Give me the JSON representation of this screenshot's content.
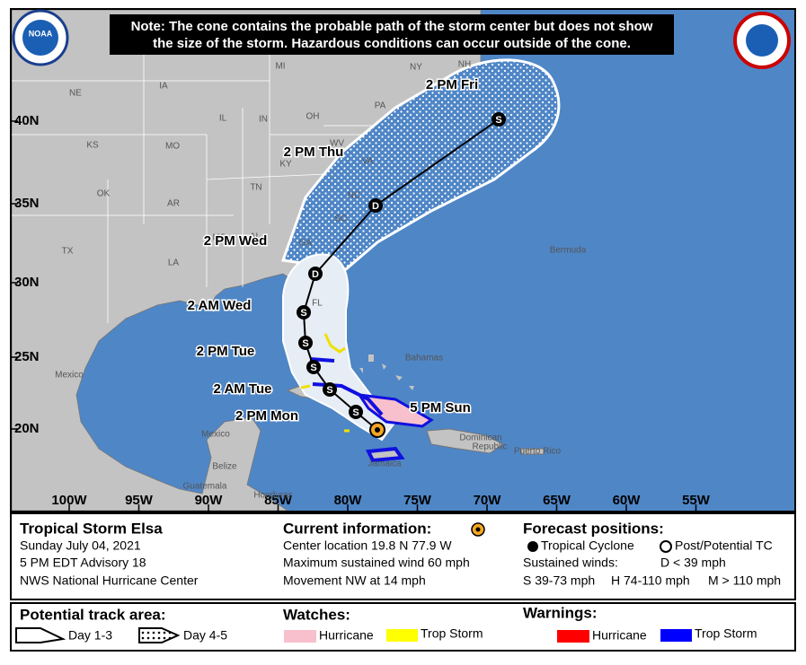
{
  "note": [
    "Note: The cone contains the probable path of the storm center but does not show",
    "the size of the storm. Hazardous conditions can occur outside of the cone."
  ],
  "logo": "NOAA",
  "latitude_labels": [
    "40N",
    "35N",
    "30N",
    "25N",
    "20N"
  ],
  "longitude_labels": [
    "100W",
    "95W",
    "90W",
    "85W",
    "80W",
    "75W",
    "70W",
    "65W",
    "60W",
    "55W"
  ],
  "place_labels": [
    "NE",
    "IA",
    "MI",
    "NY",
    "NH",
    "IL",
    "IN",
    "OH",
    "PA",
    "WV",
    "KS",
    "MO",
    "KY",
    "VA",
    "TN",
    "NC",
    "OK",
    "AR",
    "SC",
    "MS",
    "AL",
    "GA",
    "TX",
    "LA",
    "FL",
    "Bermuda",
    "Bahamas",
    "Mexico",
    "Mexico",
    "Belize",
    "Guatemala",
    "Honduras",
    "Jamaica",
    "Dominican",
    "Republic",
    "Puerto Rico"
  ],
  "forecast_times": [
    "2 PM Fri",
    "2 PM Thu",
    "2 PM Wed",
    "2 AM Wed",
    "2 PM Tue",
    "2 AM Tue",
    "2 PM Mon",
    "5 PM Sun"
  ],
  "track_markers": [
    "S",
    "D",
    "D",
    "S",
    "S",
    "S",
    "S",
    "S"
  ],
  "storm": {
    "name": "Tropical Storm Elsa",
    "date": "Sunday July 04, 2021",
    "advisory": "5 PM EDT Advisory 18",
    "center": "NWS National Hurricane Center"
  },
  "current_information": {
    "title": "Current information:",
    "lines": [
      "Center location 19.8 N 77.9 W",
      "Maximum sustained wind 60 mph",
      "Movement NW at 14 mph"
    ]
  },
  "forecast_positions": {
    "title": "Forecast positions:",
    "tropical_cyclone": "Tropical Cyclone",
    "post_potential": "Post/Potential TC",
    "sustained_winds": "Sustained winds:",
    "winds": [
      "D < 39 mph",
      "S 39-73 mph",
      "H 74-110 mph",
      "M > 110 mph"
    ]
  },
  "potential_track_area": {
    "title": "Potential track area:",
    "day_1_3": "Day 1-3",
    "day_4_5": "Day 4-5"
  },
  "watches": {
    "title": "Watches:",
    "hurricane": "Hurricane",
    "trop_storm": "Trop Storm"
  },
  "warnings": {
    "title": "Warnings:",
    "hurricane": "Hurricane",
    "trop_storm": "Trop Storm"
  }
}
